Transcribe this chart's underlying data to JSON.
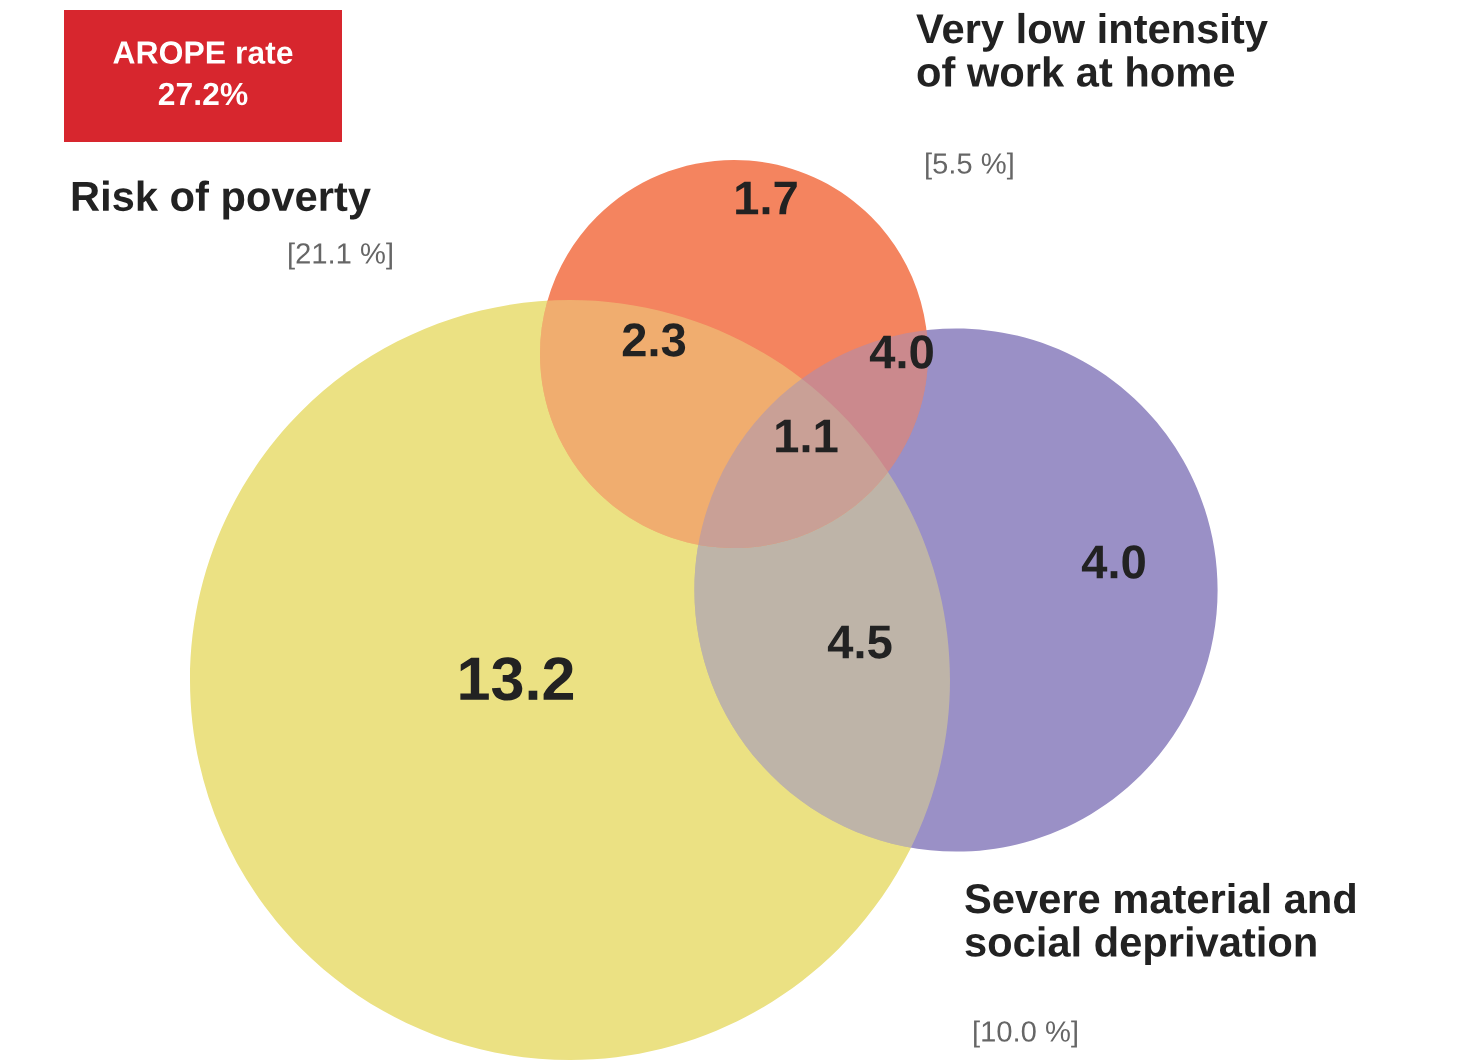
{
  "chart_data": {
    "type": "other",
    "title": "AROPE rate\n27.2%",
    "series": [
      {
        "name": "Risk of poverty",
        "values": [
          21.1
        ],
        "value_labels": [
          "[21.1 %]"
        ]
      },
      {
        "name": "Very low intensity\nof work at home",
        "values": [
          5.5
        ],
        "value_labels": [
          "[5.5 %]"
        ]
      },
      {
        "name": "Severe material and\nsocial deprivation",
        "values": [
          10.0
        ],
        "value_labels": [
          "[10.0 %]"
        ]
      }
    ],
    "annotations": [
      "13.2",
      "1.7",
      "4.0",
      "2.3",
      "4.5",
      "4.0",
      "1.1"
    ]
  }
}
